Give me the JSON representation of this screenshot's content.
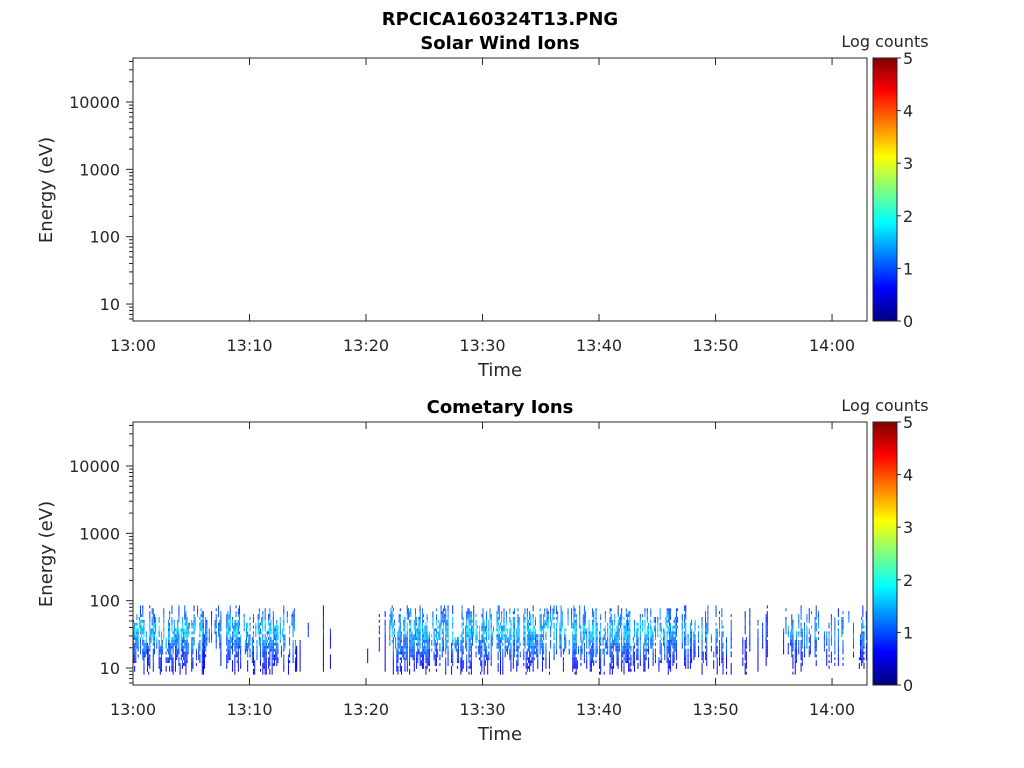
{
  "figure_title": "RPCICA160324T13.PNG",
  "colormap": [
    "#00007f",
    "#0000ff",
    "#007fff",
    "#00ffff",
    "#7fff7f",
    "#ffff00",
    "#ff7f00",
    "#ff0000",
    "#7f0000"
  ],
  "chart_data": [
    {
      "type": "heatmap",
      "title": "Solar Wind Ions",
      "xlabel": "Time",
      "ylabel": "Energy (eV)",
      "x_ticks": [
        "13:00",
        "13:10",
        "13:20",
        "13:30",
        "13:40",
        "13:50",
        "14:00"
      ],
      "x_range_minutes": [
        0,
        63
      ],
      "y_scale": "log",
      "y_ticks": [
        10,
        100,
        1000,
        10000
      ],
      "y_tick_labels": [
        "10",
        "100",
        "1000",
        "10000"
      ],
      "y_range": [
        5.6,
        45000
      ],
      "colorbar": {
        "label": "Log counts",
        "range": [
          0,
          5
        ],
        "ticks": [
          "0",
          "1",
          "2",
          "3",
          "4",
          "5"
        ]
      },
      "cells": []
    },
    {
      "type": "heatmap",
      "title": "Cometary Ions",
      "xlabel": "Time",
      "ylabel": "Energy (eV)",
      "x_ticks": [
        "13:00",
        "13:10",
        "13:20",
        "13:30",
        "13:40",
        "13:50",
        "14:00"
      ],
      "x_range_minutes": [
        0,
        63
      ],
      "y_scale": "log",
      "y_ticks": [
        10,
        100,
        1000,
        10000
      ],
      "y_tick_labels": [
        "10",
        "100",
        "1000",
        "10000"
      ],
      "y_range": [
        5.6,
        45000
      ],
      "colorbar": {
        "label": "Log counts",
        "range": [
          0,
          5
        ],
        "ticks": [
          "0",
          "1",
          "2",
          "3",
          "4",
          "5"
        ]
      },
      "energy_band_eV": [
        8,
        85
      ],
      "activity_segments": [
        {
          "start_min": 0.0,
          "end_min": 6.0,
          "density": 0.9,
          "max_log_counts": 2.0
        },
        {
          "start_min": 6.0,
          "end_min": 8.0,
          "density": 0.55,
          "max_log_counts": 1.6
        },
        {
          "start_min": 8.0,
          "end_min": 14.0,
          "density": 0.85,
          "max_log_counts": 2.0
        },
        {
          "start_min": 14.0,
          "end_min": 17.5,
          "density": 0.2,
          "max_log_counts": 1.0
        },
        {
          "start_min": 17.5,
          "end_min": 19.5,
          "density": 0.08,
          "max_log_counts": 0.8
        },
        {
          "start_min": 19.5,
          "end_min": 22.0,
          "density": 0.3,
          "max_log_counts": 1.1
        },
        {
          "start_min": 22.0,
          "end_min": 46.0,
          "density": 0.85,
          "max_log_counts": 2.0
        },
        {
          "start_min": 46.0,
          "end_min": 51.0,
          "density": 0.65,
          "max_log_counts": 1.8
        },
        {
          "start_min": 51.0,
          "end_min": 56.0,
          "density": 0.3,
          "max_log_counts": 1.2
        },
        {
          "start_min": 56.0,
          "end_min": 63.0,
          "density": 0.5,
          "max_log_counts": 1.7
        }
      ]
    }
  ]
}
